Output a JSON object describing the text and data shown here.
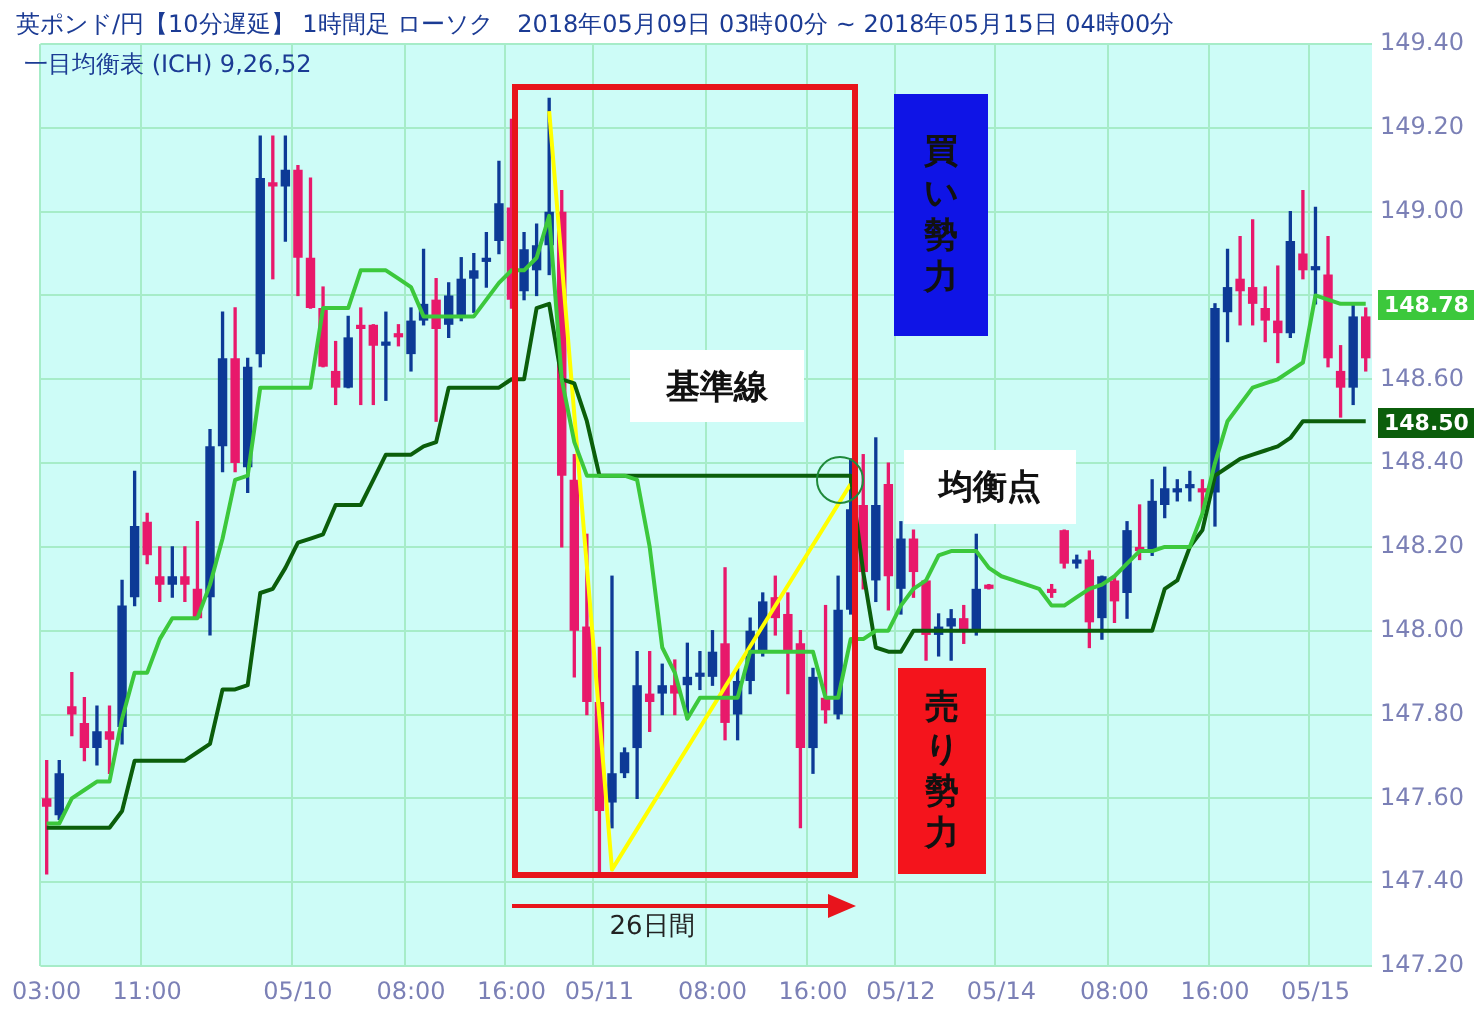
{
  "chart_data": {
    "type": "candlestick",
    "title": "英ポンド/円【10分遅延】 1時間足 ローソク　2018年05月09日 03時00分 ~ 2018年05月15日 04時00分",
    "subtitle": "一目均衡表 (ICH) 9,26,52",
    "categories": [
      "03:00",
      null,
      null,
      null,
      null,
      null,
      null,
      null,
      "11:00",
      null,
      null,
      null,
      null,
      null,
      null,
      null,
      null,
      null,
      null,
      null,
      "05/10",
      null,
      null,
      null,
      null,
      null,
      null,
      null,
      null,
      "08:00",
      null,
      null,
      null,
      null,
      null,
      null,
      null,
      "16:00",
      null,
      null,
      null,
      null,
      null,
      null,
      "05/11",
      null,
      null,
      null,
      null,
      null,
      null,
      null,
      null,
      "08:00",
      null,
      null,
      null,
      null,
      null,
      null,
      null,
      "16:00",
      null,
      null,
      null,
      null,
      null,
      null,
      "05/12",
      null,
      null,
      null,
      null,
      null,
      null,
      null,
      "05/14",
      null,
      null,
      null,
      null,
      null,
      null,
      null,
      null,
      "08:00",
      null,
      null,
      null,
      null,
      null,
      null,
      null,
      "16:00",
      null,
      null,
      null,
      null,
      null,
      null,
      null,
      "05/15",
      null,
      null,
      null,
      null
    ],
    "ohlc": [
      [
        147.6,
        147.69,
        147.42,
        147.58
      ],
      [
        147.56,
        147.69,
        147.55,
        147.66
      ],
      [
        147.82,
        147.9,
        147.75,
        147.8
      ],
      [
        147.78,
        147.84,
        147.69,
        147.72
      ],
      [
        147.72,
        147.82,
        147.68,
        147.76
      ],
      [
        147.76,
        147.82,
        147.66,
        147.74
      ],
      [
        147.77,
        148.12,
        147.73,
        148.06
      ],
      [
        148.08,
        148.38,
        148.06,
        148.25
      ],
      [
        148.26,
        148.28,
        148.16,
        148.18
      ],
      [
        148.13,
        148.2,
        148.07,
        148.11
      ],
      [
        148.11,
        148.2,
        148.08,
        148.13
      ],
      [
        148.13,
        148.2,
        148.07,
        148.11
      ],
      [
        148.1,
        148.26,
        148.03,
        148.03
      ],
      [
        148.08,
        148.48,
        147.99,
        148.44
      ],
      [
        148.44,
        148.76,
        148.38,
        148.65
      ],
      [
        148.65,
        148.77,
        148.38,
        148.4
      ],
      [
        148.39,
        148.65,
        148.33,
        148.63
      ],
      [
        148.66,
        149.18,
        148.63,
        149.08
      ],
      [
        149.07,
        149.18,
        148.84,
        149.06
      ],
      [
        149.06,
        149.18,
        148.93,
        149.1
      ],
      [
        149.1,
        149.11,
        148.8,
        148.89
      ],
      [
        148.89,
        149.08,
        148.77,
        148.77
      ],
      [
        148.77,
        148.82,
        148.63,
        148.63
      ],
      [
        148.62,
        148.69,
        148.54,
        148.58
      ],
      [
        148.58,
        148.75,
        148.58,
        148.7
      ],
      [
        148.73,
        148.77,
        148.54,
        148.72
      ],
      [
        148.73,
        148.73,
        148.54,
        148.68
      ],
      [
        148.68,
        148.76,
        148.55,
        148.69
      ],
      [
        148.71,
        148.73,
        148.68,
        148.7
      ],
      [
        148.66,
        148.77,
        148.62,
        148.74
      ],
      [
        148.74,
        148.91,
        148.73,
        148.78
      ],
      [
        148.79,
        148.84,
        148.5,
        148.72
      ],
      [
        148.73,
        148.83,
        148.7,
        148.8
      ],
      [
        148.75,
        148.89,
        148.74,
        148.84
      ],
      [
        148.84,
        148.9,
        148.76,
        148.86
      ],
      [
        148.88,
        148.95,
        148.82,
        148.89
      ],
      [
        148.93,
        149.12,
        148.9,
        149.02
      ],
      [
        149.01,
        149.22,
        148.77,
        148.79
      ],
      [
        148.81,
        148.95,
        148.79,
        148.91
      ],
      [
        148.86,
        148.97,
        148.8,
        148.92
      ],
      [
        148.92,
        149.27,
        148.85,
        149.0
      ],
      [
        149.0,
        149.05,
        148.2,
        148.37
      ],
      [
        148.36,
        148.42,
        147.89,
        148.0
      ],
      [
        148.01,
        148.23,
        147.8,
        147.83
      ],
      [
        147.83,
        147.96,
        147.42,
        147.57
      ],
      [
        147.59,
        148.13,
        147.53,
        147.66
      ],
      [
        147.66,
        147.72,
        147.65,
        147.71
      ],
      [
        147.72,
        147.95,
        147.6,
        147.87
      ],
      [
        147.85,
        147.95,
        147.76,
        147.83
      ],
      [
        147.85,
        147.92,
        147.8,
        147.87
      ],
      [
        147.87,
        147.93,
        147.8,
        147.85
      ],
      [
        147.87,
        147.97,
        147.79,
        147.89
      ],
      [
        147.89,
        147.95,
        147.86,
        147.9
      ],
      [
        147.89,
        148.0,
        147.87,
        147.95
      ],
      [
        147.97,
        148.15,
        147.74,
        147.78
      ],
      [
        147.8,
        147.91,
        147.74,
        147.88
      ],
      [
        147.88,
        148.03,
        147.85,
        148.0
      ],
      [
        147.95,
        148.09,
        147.94,
        148.07
      ],
      [
        148.08,
        148.13,
        147.99,
        148.03
      ],
      [
        148.04,
        148.09,
        147.85,
        147.95
      ],
      [
        147.97,
        148.0,
        147.53,
        147.72
      ],
      [
        147.72,
        147.91,
        147.66,
        147.89
      ],
      [
        147.84,
        148.06,
        147.78,
        147.81
      ],
      [
        147.8,
        148.13,
        147.79,
        148.05
      ],
      [
        148.05,
        148.41,
        148.04,
        148.29
      ],
      [
        148.3,
        148.42,
        148.1,
        148.14
      ],
      [
        148.12,
        148.46,
        148.07,
        148.3
      ],
      [
        148.35,
        148.4,
        148.05,
        148.13
      ],
      [
        148.1,
        148.26,
        148.04,
        148.22
      ],
      [
        148.22,
        148.24,
        148.08,
        148.14
      ],
      [
        148.12,
        148.12,
        147.93,
        147.99
      ],
      [
        147.99,
        148.04,
        147.94,
        148.01
      ],
      [
        148.01,
        148.05,
        147.93,
        148.03
      ],
      [
        148.03,
        148.06,
        147.97,
        148.0
      ],
      [
        148.0,
        148.23,
        147.99,
        148.1
      ],
      [
        148.11,
        148.11,
        148.1,
        148.1
      ],
      null,
      null,
      null,
      null,
      [
        148.1,
        148.11,
        148.08,
        148.09
      ],
      [
        148.24,
        148.24,
        148.15,
        148.16
      ],
      [
        148.16,
        148.18,
        148.15,
        148.17
      ],
      [
        148.17,
        148.19,
        147.96,
        148.02
      ],
      [
        148.03,
        148.13,
        147.98,
        148.13
      ],
      [
        148.12,
        148.13,
        148.02,
        148.07
      ],
      [
        148.09,
        148.26,
        148.03,
        148.24
      ],
      [
        148.2,
        148.3,
        148.17,
        148.19
      ],
      [
        148.19,
        148.36,
        148.18,
        148.31
      ],
      [
        148.3,
        148.39,
        148.27,
        148.34
      ],
      [
        148.33,
        148.36,
        148.31,
        148.34
      ],
      [
        148.34,
        148.38,
        148.31,
        148.35
      ],
      [
        148.34,
        148.36,
        148.28,
        148.33
      ],
      [
        148.33,
        148.78,
        148.25,
        148.77
      ],
      [
        148.76,
        148.91,
        148.69,
        148.82
      ],
      [
        148.84,
        148.94,
        148.73,
        148.81
      ],
      [
        148.82,
        148.98,
        148.73,
        148.78
      ],
      [
        148.77,
        148.82,
        148.69,
        148.74
      ],
      [
        148.74,
        148.87,
        148.64,
        148.71
      ],
      [
        148.71,
        149.0,
        148.7,
        148.93
      ],
      [
        148.9,
        149.05,
        148.84,
        148.86
      ],
      [
        148.86,
        149.01,
        148.78,
        148.87
      ],
      [
        148.85,
        148.94,
        148.63,
        148.65
      ],
      [
        148.62,
        148.68,
        148.51,
        148.58
      ],
      [
        148.58,
        148.78,
        148.54,
        148.75
      ],
      [
        148.75,
        148.77,
        148.62,
        148.65
      ]
    ],
    "colors": [
      "#e8196b",
      "#0d3a96",
      "#e8196b",
      "#e8196b",
      "#0d3a96",
      "#e8196b",
      "#0d3a96",
      "#0d3a96",
      "#e8196b",
      "#e8196b",
      "#0d3a96",
      "#e8196b",
      "#e8196b",
      "#0d3a96",
      "#0d3a96",
      "#e8196b",
      "#0d3a96",
      "#0d3a96",
      "#e8196b",
      "#0d3a96",
      "#e8196b",
      "#e8196b",
      "#e8196b",
      "#e8196b",
      "#0d3a96",
      "#e8196b",
      "#e8196b",
      "#0d3a96",
      "#e8196b",
      "#0d3a96",
      "#0d3a96",
      "#e8196b",
      "#0d3a96",
      "#0d3a96",
      "#0d3a96",
      "#0d3a96",
      "#0d3a96",
      "#e8196b",
      "#0d3a96",
      "#0d3a96",
      "#0d3a96",
      "#e8196b",
      "#e8196b",
      "#e8196b",
      "#e8196b",
      "#0d3a96",
      "#0d3a96",
      "#0d3a96",
      "#e8196b",
      "#0d3a96",
      "#e8196b",
      "#0d3a96",
      "#0d3a96",
      "#0d3a96",
      "#e8196b",
      "#0d3a96",
      "#0d3a96",
      "#0d3a96",
      "#e8196b",
      "#e8196b",
      "#e8196b",
      "#0d3a96",
      "#e8196b",
      "#0d3a96",
      "#0d3a96",
      "#e8196b",
      "#0d3a96",
      "#e8196b",
      "#0d3a96",
      "#e8196b",
      "#e8196b",
      "#0d3a96",
      "#0d3a96",
      "#e8196b",
      "#0d3a96",
      "#e8196b",
      null,
      null,
      null,
      null,
      "#e8196b",
      "#e8196b",
      "#0d3a96",
      "#e8196b",
      "#0d3a96",
      "#e8196b",
      "#0d3a96",
      "#e8196b",
      "#0d3a96",
      "#0d3a96",
      "#0d3a96",
      "#0d3a96",
      "#e8196b",
      "#0d3a96",
      "#0d3a96",
      "#e8196b",
      "#e8196b",
      "#e8196b",
      "#e8196b",
      "#0d3a96",
      "#e8196b",
      "#0d3a96",
      "#e8196b",
      "#e8196b",
      "#0d3a96",
      "#e8196b"
    ],
    "series": [
      {
        "type": "line",
        "color": "#3cc83c",
        "values": [
          147.54,
          147.54,
          147.6,
          147.62,
          147.64,
          147.64,
          147.79,
          147.9,
          147.9,
          147.98,
          148.03,
          148.03,
          148.03,
          148.11,
          148.22,
          148.36,
          148.37,
          148.58,
          148.58,
          148.58,
          148.58,
          148.58,
          148.77,
          148.77,
          148.77,
          148.86,
          148.86,
          148.86,
          148.84,
          148.82,
          148.75,
          148.75,
          148.75,
          148.75,
          148.75,
          148.79,
          148.83,
          148.86,
          148.86,
          148.89,
          148.99,
          148.6,
          148.45,
          148.37,
          148.37,
          148.37,
          148.37,
          148.36,
          148.2,
          147.96,
          147.9,
          147.79,
          147.84,
          147.84,
          147.84,
          147.84,
          147.95,
          147.95,
          147.95,
          147.95,
          147.95,
          147.95,
          147.84,
          147.84,
          147.98,
          147.98,
          148.0,
          148.0,
          148.06,
          148.1,
          148.12,
          148.18,
          148.19,
          148.19,
          148.19,
          148.15,
          148.13,
          148.12,
          148.11,
          148.1,
          148.06,
          148.06,
          148.08,
          148.1,
          148.11,
          148.13,
          148.16,
          148.19,
          148.19,
          148.2,
          148.2,
          148.2,
          148.28,
          148.4,
          148.5,
          148.54,
          148.58,
          148.59,
          148.6,
          148.62,
          148.64,
          148.8,
          148.79,
          148.78,
          148.78,
          148.78
        ]
      },
      {
        "type": "line",
        "color": "#0b5e0b",
        "values": [
          147.53,
          147.53,
          147.53,
          147.53,
          147.53,
          147.53,
          147.57,
          147.69,
          147.69,
          147.69,
          147.69,
          147.69,
          147.71,
          147.73,
          147.86,
          147.86,
          147.87,
          148.09,
          148.1,
          148.15,
          148.21,
          148.22,
          148.23,
          148.3,
          148.3,
          148.3,
          148.36,
          148.42,
          148.42,
          148.42,
          148.44,
          148.45,
          148.58,
          148.58,
          148.58,
          148.58,
          148.58,
          148.6,
          148.6,
          148.77,
          148.78,
          148.6,
          148.59,
          148.5,
          148.37,
          148.37,
          148.37,
          148.37,
          148.37,
          148.37,
          148.37,
          148.37,
          148.37,
          148.37,
          148.37,
          148.37,
          148.37,
          148.37,
          148.37,
          148.37,
          148.37,
          148.37,
          148.37,
          148.37,
          148.37,
          148.14,
          147.96,
          147.95,
          147.95,
          148.0,
          148.0,
          148.0,
          148.0,
          148.0,
          148.0,
          148.0,
          148.0,
          148.0,
          148.0,
          148.0,
          148.0,
          148.0,
          148.0,
          148.0,
          148.0,
          148.0,
          148.0,
          148.0,
          148.0,
          148.1,
          148.12,
          148.2,
          148.24,
          148.37,
          148.39,
          148.41,
          148.42,
          148.43,
          148.44,
          148.46,
          148.5,
          148.5,
          148.5,
          148.5,
          148.5,
          148.5
        ]
      },
      {
        "type": "line",
        "color": "#ffff00",
        "values": [
          null,
          null,
          null,
          null,
          null,
          null,
          null,
          null,
          null,
          null,
          null,
          null,
          null,
          null,
          null,
          null,
          null,
          null,
          null,
          null,
          null,
          null,
          null,
          null,
          null,
          null,
          null,
          null,
          null,
          null,
          null,
          null,
          null,
          null,
          null,
          null,
          null,
          null,
          null,
          null,
          149.24,
          null,
          null,
          null,
          null,
          147.43,
          null,
          null,
          null,
          null,
          null,
          null,
          null,
          null,
          null,
          null,
          null,
          null,
          null,
          null,
          null,
          null,
          null,
          null,
          148.35,
          null,
          null,
          null,
          null,
          null,
          null,
          null,
          null,
          null,
          null,
          null,
          null,
          null,
          null,
          null,
          null,
          null,
          null,
          null,
          null,
          null,
          null,
          null,
          null,
          null,
          null,
          null,
          null,
          null,
          null,
          null,
          null,
          null,
          null,
          null,
          null,
          null,
          null,
          null,
          null,
          null
        ]
      }
    ],
    "ylim": [
      147.2,
      149.4
    ],
    "yticks": [
      {
        "value": 147.2,
        "label": "147.20"
      },
      {
        "value": 147.4,
        "label": "147.40"
      },
      {
        "value": 147.6,
        "label": "147.60"
      },
      {
        "value": 147.8,
        "label": "147.80"
      },
      {
        "value": 148.0,
        "label": "148.00"
      },
      {
        "value": 148.2,
        "label": "148.20"
      },
      {
        "value": 148.4,
        "label": "148.40"
      },
      {
        "value": 148.6,
        "label": "148.60"
      },
      {
        "value": 148.8,
        "label": null
      },
      {
        "value": 149.0,
        "label": "149.00"
      },
      {
        "value": 149.2,
        "label": "149.20"
      },
      {
        "value": 149.4,
        "label": "149.40"
      }
    ],
    "grid": true,
    "annotations": [
      "基準線",
      "均衡点",
      "買い勢力",
      "売り勢力",
      "26日間",
      "148.78",
      "148.50"
    ]
  }
}
